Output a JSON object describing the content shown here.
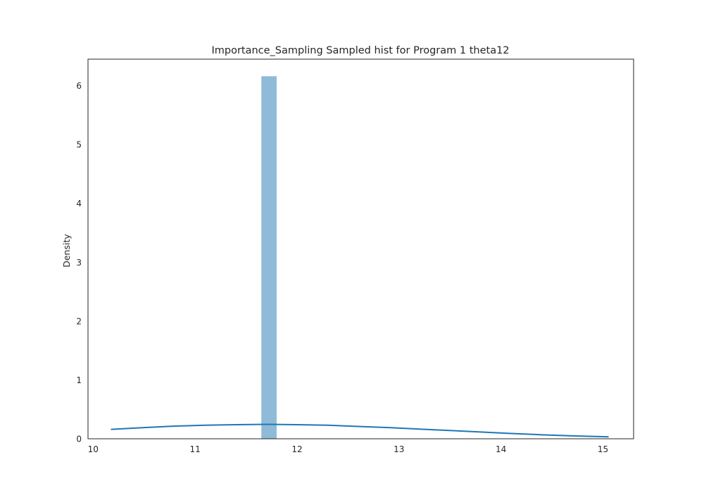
{
  "chart_data": {
    "type": "bar",
    "title": "Importance_Sampling Sampled hist for Program 1 theta12",
    "xlabel": "",
    "ylabel": "Density",
    "xlim": [
      9.95,
      15.3
    ],
    "ylim": [
      0,
      6.45
    ],
    "xticks": [
      10,
      11,
      12,
      13,
      14,
      15
    ],
    "yticks": [
      0,
      1,
      2,
      3,
      4,
      5,
      6
    ],
    "grid": false,
    "histogram": {
      "bins": [
        {
          "x0": 11.65,
          "x1": 11.8,
          "density": 6.16
        }
      ],
      "color": "#8fbbd9"
    },
    "kde": {
      "color": "#1f77b4",
      "x": [
        10.18,
        10.5,
        10.8,
        11.1,
        11.4,
        11.7,
        12.0,
        12.3,
        12.6,
        12.9,
        13.2,
        13.5,
        13.8,
        14.1,
        14.4,
        14.7,
        15.05
      ],
      "y": [
        0.16,
        0.19,
        0.215,
        0.23,
        0.24,
        0.245,
        0.24,
        0.23,
        0.21,
        0.19,
        0.165,
        0.14,
        0.115,
        0.09,
        0.068,
        0.05,
        0.033
      ]
    }
  }
}
